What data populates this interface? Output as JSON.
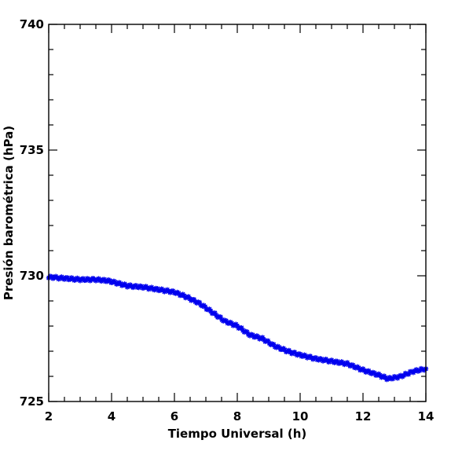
{
  "chart_data": {
    "type": "scatter",
    "xlabel": "Tiempo Universal (h)",
    "ylabel": "Presión barométrica (hPa)",
    "xlim": [
      2,
      14
    ],
    "ylim": [
      725,
      740
    ],
    "x_ticks": [
      "2",
      "4",
      "6",
      "8",
      "10",
      "12",
      "14"
    ],
    "y_ticks": [
      "725",
      "730",
      "735",
      "740"
    ],
    "grid": false,
    "marker": "asterisk",
    "color": "#0000ee",
    "series": [
      {
        "x": [
          2.0,
          2.5,
          3.0,
          3.5,
          3.9,
          4.2,
          4.5,
          5.0,
          5.5,
          6.0,
          6.4,
          6.8,
          7.2,
          7.6,
          8.0,
          8.4,
          8.8,
          9.2,
          9.6,
          10.0,
          10.5,
          11.0,
          11.5,
          12.0,
          12.5,
          12.8,
          13.0,
          13.2,
          13.4,
          13.6,
          13.8,
          14.0
        ],
        "y": [
          729.95,
          729.9,
          729.85,
          729.85,
          729.8,
          729.7,
          729.6,
          729.55,
          729.45,
          729.35,
          729.15,
          728.9,
          728.55,
          728.2,
          728.0,
          727.65,
          727.5,
          727.2,
          727.0,
          726.85,
          726.7,
          726.6,
          726.5,
          726.25,
          726.05,
          725.9,
          725.95,
          726.0,
          726.1,
          726.2,
          726.25,
          726.3
        ]
      }
    ]
  }
}
